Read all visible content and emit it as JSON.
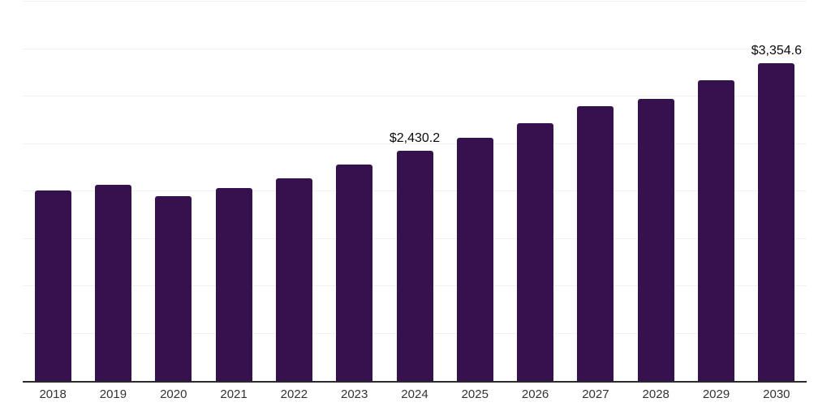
{
  "chart": {
    "background_color": "#ffffff",
    "bar_color": "#35114e",
    "gridline_color": "#f1f1f1",
    "axis_line_color": "#2b2b2b",
    "tick_label_color": "#333333",
    "data_label_color": "#0a0a0a"
  },
  "chart_data": {
    "type": "bar",
    "title": "",
    "xlabel": "",
    "ylabel": "",
    "categories": [
      "2018",
      "2019",
      "2020",
      "2021",
      "2022",
      "2023",
      "2024",
      "2025",
      "2026",
      "2027",
      "2028",
      "2029",
      "2030"
    ],
    "values": [
      2010,
      2065,
      1950,
      2035,
      2140,
      2280,
      2430.2,
      2565,
      2720,
      2895,
      2975,
      3170,
      3354.6
    ],
    "annotations": [
      {
        "category": "2024",
        "text": "$2,430.2"
      },
      {
        "category": "2030",
        "text": "$3,354.6"
      }
    ],
    "ylim": [
      0,
      4000
    ],
    "gridline_step": 500,
    "grid": true,
    "legend": false,
    "y_axis_labels_visible": false
  }
}
